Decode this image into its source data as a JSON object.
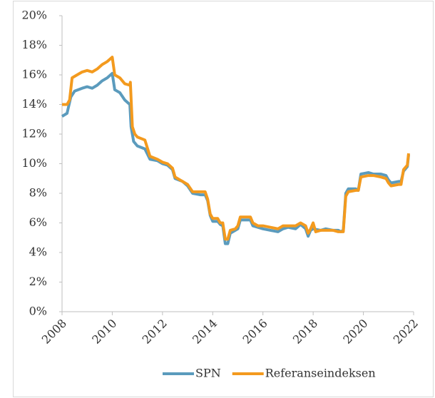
{
  "chart_data": {
    "type": "line",
    "xlim": [
      2008,
      2022
    ],
    "xticks": [
      2008,
      2010,
      2012,
      2014,
      2016,
      2018,
      2020,
      2022
    ],
    "ylim": [
      0,
      20
    ],
    "yticks": [
      {
        "value": 0,
        "label": "0%"
      },
      {
        "value": 2,
        "label": "2%"
      },
      {
        "value": 4,
        "label": "4%"
      },
      {
        "value": 6,
        "label": "6%"
      },
      {
        "value": 8,
        "label": "8%"
      },
      {
        "value": 10,
        "label": "10%"
      },
      {
        "value": 12,
        "label": "12%"
      },
      {
        "value": 14,
        "label": "14%"
      },
      {
        "value": 16,
        "label": "16%"
      },
      {
        "value": 18,
        "label": "18%"
      },
      {
        "value": 20,
        "label": "20%"
      }
    ],
    "grid": false,
    "legend": "bottom",
    "series": [
      {
        "name": "SPN",
        "color": "#5b9bbd",
        "x": [
          2008.0,
          2008.2,
          2008.35,
          2008.5,
          2008.8,
          2009.0,
          2009.2,
          2009.4,
          2009.6,
          2009.8,
          2010.0,
          2010.1,
          2010.3,
          2010.5,
          2010.7,
          2010.75,
          2010.85,
          2011.0,
          2011.3,
          2011.5,
          2011.8,
          2012.0,
          2012.2,
          2012.4,
          2012.5,
          2012.8,
          2013.0,
          2013.2,
          2013.5,
          2013.7,
          2013.8,
          2013.9,
          2014.0,
          2014.2,
          2014.3,
          2014.4,
          2014.5,
          2014.6,
          2014.7,
          2014.9,
          2015.0,
          2015.1,
          2015.5,
          2015.6,
          2015.8,
          2016.0,
          2016.3,
          2016.6,
          2016.8,
          2017.0,
          2017.3,
          2017.5,
          2017.7,
          2017.8,
          2017.9,
          2018.0,
          2018.3,
          2018.5,
          2018.8,
          2019.0,
          2019.1,
          2019.2,
          2019.3,
          2019.4,
          2019.7,
          2019.8,
          2019.9,
          2020.2,
          2020.4,
          2020.7,
          2020.9,
          2021.0,
          2021.1,
          2021.4,
          2021.5,
          2021.6,
          2021.75,
          2021.8
        ],
        "values": [
          13.2,
          13.4,
          14.5,
          14.9,
          15.1,
          15.2,
          15.1,
          15.3,
          15.6,
          15.8,
          16.1,
          15.0,
          14.8,
          14.3,
          14.0,
          12.5,
          11.5,
          11.2,
          11.0,
          10.3,
          10.2,
          10.0,
          9.9,
          9.6,
          9.0,
          8.8,
          8.5,
          8.0,
          7.9,
          7.9,
          7.5,
          6.5,
          6.1,
          6.1,
          5.9,
          5.8,
          4.6,
          4.6,
          5.3,
          5.5,
          5.6,
          6.2,
          6.2,
          5.8,
          5.7,
          5.6,
          5.5,
          5.4,
          5.6,
          5.7,
          5.6,
          5.9,
          5.6,
          5.1,
          5.5,
          5.6,
          5.5,
          5.6,
          5.5,
          5.5,
          5.4,
          5.5,
          8.0,
          8.3,
          8.3,
          8.2,
          9.3,
          9.4,
          9.3,
          9.3,
          9.2,
          8.9,
          8.7,
          8.8,
          8.8,
          9.5,
          9.8,
          10.6
        ]
      },
      {
        "name": "Referanseindeksen",
        "color": "#f39a1e",
        "x": [
          2008.0,
          2008.2,
          2008.3,
          2008.4,
          2008.6,
          2008.8,
          2009.0,
          2009.2,
          2009.4,
          2009.6,
          2009.8,
          2010.0,
          2010.1,
          2010.3,
          2010.5,
          2010.7,
          2010.72,
          2010.8,
          2010.9,
          2011.0,
          2011.3,
          2011.5,
          2011.8,
          2012.0,
          2012.2,
          2012.4,
          2012.5,
          2012.8,
          2013.0,
          2013.2,
          2013.5,
          2013.7,
          2013.8,
          2013.9,
          2014.0,
          2014.2,
          2014.3,
          2014.4,
          2014.5,
          2014.6,
          2014.7,
          2014.9,
          2015.0,
          2015.1,
          2015.5,
          2015.6,
          2015.8,
          2016.0,
          2016.3,
          2016.6,
          2016.8,
          2017.0,
          2017.3,
          2017.5,
          2017.7,
          2017.8,
          2017.9,
          2018.0,
          2018.1,
          2018.3,
          2018.5,
          2018.8,
          2019.0,
          2019.1,
          2019.2,
          2019.3,
          2019.4,
          2019.7,
          2019.8,
          2019.9,
          2020.2,
          2020.4,
          2020.7,
          2020.9,
          2021.0,
          2021.1,
          2021.4,
          2021.5,
          2021.6,
          2021.75,
          2021.8
        ],
        "values": [
          14.0,
          14.0,
          14.3,
          15.8,
          16.0,
          16.2,
          16.3,
          16.2,
          16.4,
          16.7,
          16.9,
          17.2,
          16.0,
          15.8,
          15.4,
          15.3,
          15.5,
          12.5,
          12.0,
          11.8,
          11.6,
          10.5,
          10.3,
          10.1,
          10.0,
          9.7,
          9.1,
          8.8,
          8.6,
          8.1,
          8.1,
          8.1,
          7.6,
          6.6,
          6.3,
          6.3,
          6.0,
          6.0,
          4.9,
          4.9,
          5.5,
          5.6,
          5.8,
          6.4,
          6.4,
          6.0,
          5.8,
          5.8,
          5.7,
          5.6,
          5.8,
          5.8,
          5.8,
          6.0,
          5.8,
          5.3,
          5.6,
          6.0,
          5.4,
          5.5,
          5.5,
          5.5,
          5.4,
          5.4,
          5.4,
          7.8,
          8.1,
          8.2,
          8.2,
          9.1,
          9.2,
          9.2,
          9.1,
          9.0,
          8.7,
          8.5,
          8.6,
          8.6,
          9.6,
          9.9,
          10.7
        ]
      }
    ]
  }
}
